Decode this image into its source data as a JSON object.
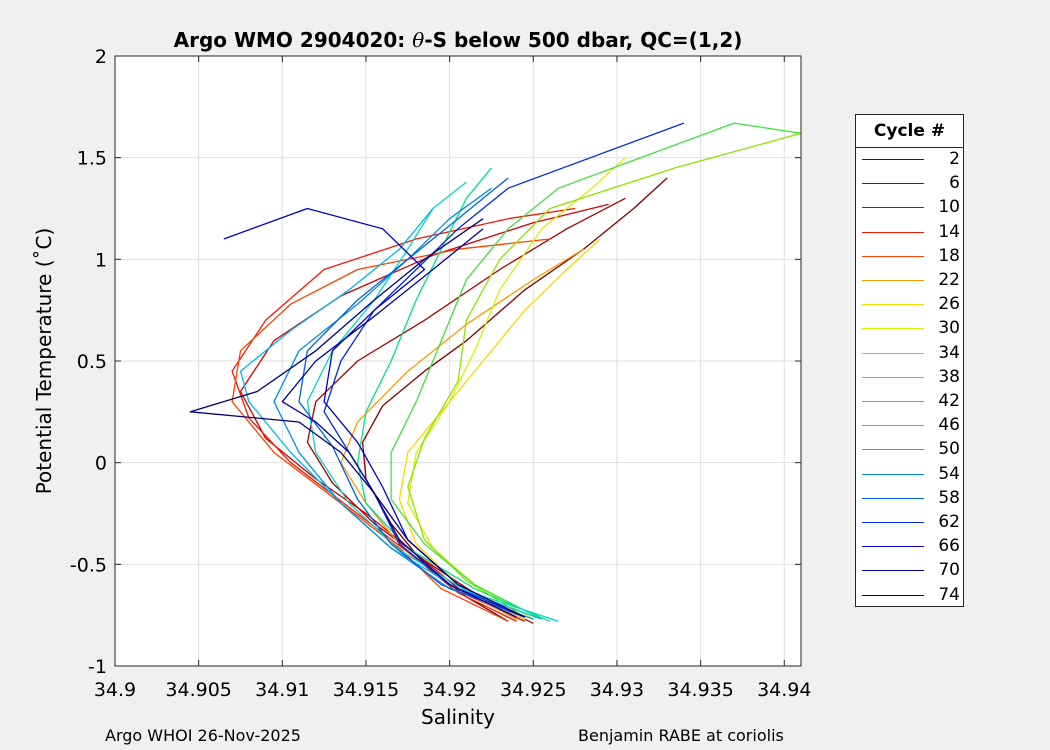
{
  "chart_data": {
    "type": "line",
    "title_prefix": "Argo WMO 2904020: ",
    "title_symbol": "θ",
    "title_suffix": "-S below 500 dbar,  QC=(1,2)",
    "xlabel": "Salinity",
    "ylabel": "Potential Temperature (˚C)",
    "xlim": [
      34.9,
      34.941
    ],
    "ylim": [
      -1,
      2
    ],
    "xticks": [
      34.9,
      34.905,
      34.91,
      34.915,
      34.92,
      34.925,
      34.93,
      34.935,
      34.94
    ],
    "xtick_labels": [
      "34.9",
      "34.905",
      "34.91",
      "34.915",
      "34.92",
      "34.925",
      "34.93",
      "34.935",
      "34.94"
    ],
    "yticks": [
      -1,
      -0.5,
      0,
      0.5,
      1,
      1.5,
      2
    ],
    "ytick_labels": [
      "-1",
      "-0.5",
      "0",
      "0.5",
      "1",
      "1.5",
      "2"
    ],
    "grid": true,
    "legend_title": "Cycle #",
    "legend_position": "outside-right",
    "series": [
      {
        "name": "2",
        "color": "#800000",
        "points": [
          [
            34.9235,
            -0.78
          ],
          [
            34.921,
            -0.66
          ],
          [
            34.9185,
            -0.5
          ],
          [
            34.9165,
            -0.3
          ],
          [
            34.915,
            -0.08
          ],
          [
            34.9148,
            0.1
          ],
          [
            34.916,
            0.28
          ],
          [
            34.9185,
            0.45
          ],
          [
            34.921,
            0.6
          ],
          [
            34.9245,
            0.85
          ],
          [
            34.928,
            1.05
          ],
          [
            34.931,
            1.25
          ],
          [
            34.933,
            1.4
          ]
        ]
      },
      {
        "name": "6",
        "color": "#a80000",
        "points": [
          [
            34.925,
            -0.79
          ],
          [
            34.922,
            -0.67
          ],
          [
            34.9185,
            -0.48
          ],
          [
            34.9155,
            -0.3
          ],
          [
            34.913,
            -0.1
          ],
          [
            34.9115,
            0.1
          ],
          [
            34.912,
            0.3
          ],
          [
            34.9145,
            0.5
          ],
          [
            34.9185,
            0.7
          ],
          [
            34.923,
            0.95
          ],
          [
            34.927,
            1.15
          ],
          [
            34.9305,
            1.3
          ]
        ]
      },
      {
        "name": "10",
        "color": "#d00000",
        "points": [
          [
            34.9245,
            -0.78
          ],
          [
            34.921,
            -0.65
          ],
          [
            34.918,
            -0.45
          ],
          [
            34.915,
            -0.25
          ],
          [
            34.912,
            -0.08
          ],
          [
            34.909,
            0.12
          ],
          [
            34.9075,
            0.35
          ],
          [
            34.9095,
            0.6
          ],
          [
            34.9135,
            0.82
          ],
          [
            34.919,
            1.02
          ],
          [
            34.925,
            1.18
          ],
          [
            34.9295,
            1.27
          ]
        ]
      },
      {
        "name": "14",
        "color": "#f51800",
        "points": [
          [
            34.924,
            -0.78
          ],
          [
            34.9205,
            -0.64
          ],
          [
            34.9175,
            -0.44
          ],
          [
            34.914,
            -0.22
          ],
          [
            34.9105,
            0.0
          ],
          [
            34.908,
            0.22
          ],
          [
            34.907,
            0.45
          ],
          [
            34.909,
            0.7
          ],
          [
            34.9125,
            0.95
          ],
          [
            34.918,
            1.1
          ],
          [
            34.9235,
            1.2
          ],
          [
            34.9275,
            1.25
          ]
        ]
      },
      {
        "name": "18",
        "color": "#ff4000",
        "points": [
          [
            34.9235,
            -0.78
          ],
          [
            34.9195,
            -0.62
          ],
          [
            34.917,
            -0.42
          ],
          [
            34.9135,
            -0.2
          ],
          [
            34.9095,
            0.05
          ],
          [
            34.907,
            0.3
          ],
          [
            34.9075,
            0.55
          ],
          [
            34.9105,
            0.78
          ],
          [
            34.9145,
            0.95
          ],
          [
            34.9205,
            1.05
          ],
          [
            34.926,
            1.1
          ]
        ]
      },
      {
        "name": "22",
        "color": "#ff9900",
        "points": [
          [
            34.924,
            -0.77
          ],
          [
            34.92,
            -0.6
          ],
          [
            34.917,
            -0.4
          ],
          [
            34.915,
            -0.2
          ],
          [
            34.9135,
            0.0
          ],
          [
            34.9145,
            0.2
          ],
          [
            34.9175,
            0.45
          ],
          [
            34.921,
            0.68
          ],
          [
            34.925,
            0.9
          ],
          [
            34.928,
            1.05
          ]
        ]
      },
      {
        "name": "26",
        "color": "#ffd400",
        "points": [
          [
            34.9245,
            -0.77
          ],
          [
            34.9205,
            -0.6
          ],
          [
            34.918,
            -0.4
          ],
          [
            34.917,
            -0.18
          ],
          [
            34.9175,
            0.05
          ],
          [
            34.9195,
            0.25
          ],
          [
            34.922,
            0.5
          ],
          [
            34.9245,
            0.75
          ],
          [
            34.927,
            0.95
          ],
          [
            34.929,
            1.1
          ]
        ]
      },
      {
        "name": "30",
        "color": "#d8f000",
        "points": [
          [
            34.925,
            -0.77
          ],
          [
            34.9215,
            -0.6
          ],
          [
            34.919,
            -0.42
          ],
          [
            34.9175,
            -0.2
          ],
          [
            34.918,
            0.05
          ],
          [
            34.92,
            0.3
          ],
          [
            34.9215,
            0.55
          ],
          [
            34.923,
            0.85
          ],
          [
            34.9255,
            1.15
          ],
          [
            34.9285,
            1.35
          ],
          [
            34.9305,
            1.5
          ]
        ]
      },
      {
        "name": "34",
        "color": "#90e000",
        "points": [
          [
            34.9245,
            -0.76
          ],
          [
            34.921,
            -0.58
          ],
          [
            34.9185,
            -0.38
          ],
          [
            34.9175,
            -0.12
          ],
          [
            34.9185,
            0.12
          ],
          [
            34.9205,
            0.4
          ],
          [
            34.921,
            0.7
          ],
          [
            34.923,
            1.0
          ],
          [
            34.926,
            1.25
          ],
          [
            34.9335,
            1.45
          ],
          [
            34.941,
            1.62
          ]
        ]
      },
      {
        "name": "38",
        "color": "#40e040",
        "points": [
          [
            34.9255,
            -0.77
          ],
          [
            34.9215,
            -0.6
          ],
          [
            34.9185,
            -0.4
          ],
          [
            34.9165,
            -0.18
          ],
          [
            34.9165,
            0.05
          ],
          [
            34.918,
            0.3
          ],
          [
            34.9195,
            0.6
          ],
          [
            34.921,
            0.9
          ],
          [
            34.9235,
            1.15
          ],
          [
            34.9265,
            1.35
          ],
          [
            34.937,
            1.67
          ],
          [
            34.941,
            1.62
          ]
        ]
      },
      {
        "name": "42",
        "color": "#00e08a",
        "points": [
          [
            34.926,
            -0.78
          ],
          [
            34.9215,
            -0.62
          ],
          [
            34.9175,
            -0.42
          ],
          [
            34.915,
            -0.2
          ],
          [
            34.9145,
            0.0
          ],
          [
            34.915,
            0.25
          ],
          [
            34.9165,
            0.5
          ],
          [
            34.918,
            0.8
          ],
          [
            34.9195,
            1.05
          ],
          [
            34.921,
            1.3
          ],
          [
            34.9225,
            1.45
          ]
        ]
      },
      {
        "name": "46",
        "color": "#00d8c8",
        "points": [
          [
            34.9265,
            -0.78
          ],
          [
            34.921,
            -0.63
          ],
          [
            34.917,
            -0.43
          ],
          [
            34.914,
            -0.2
          ],
          [
            34.912,
            0.05
          ],
          [
            34.9115,
            0.3
          ],
          [
            34.913,
            0.55
          ],
          [
            34.9155,
            0.8
          ],
          [
            34.9175,
            1.05
          ],
          [
            34.919,
            1.25
          ],
          [
            34.921,
            1.38
          ]
        ]
      },
      {
        "name": "50",
        "color": "#00b8f0",
        "points": [
          [
            34.9255,
            -0.77
          ],
          [
            34.9205,
            -0.62
          ],
          [
            34.9165,
            -0.42
          ],
          [
            34.9135,
            -0.2
          ],
          [
            34.9105,
            0.05
          ],
          [
            34.908,
            0.3
          ],
          [
            34.9075,
            0.45
          ],
          [
            34.9105,
            0.65
          ],
          [
            34.914,
            0.85
          ],
          [
            34.917,
            1.05
          ],
          [
            34.919,
            1.25
          ]
        ]
      },
      {
        "name": "54",
        "color": "#0090e0",
        "points": [
          [
            34.925,
            -0.77
          ],
          [
            34.92,
            -0.62
          ],
          [
            34.9165,
            -0.42
          ],
          [
            34.9135,
            -0.2
          ],
          [
            34.911,
            0.05
          ],
          [
            34.9095,
            0.3
          ],
          [
            34.911,
            0.55
          ],
          [
            34.9145,
            0.78
          ],
          [
            34.9175,
            1.0
          ],
          [
            34.92,
            1.2
          ],
          [
            34.9225,
            1.35
          ]
        ]
      },
      {
        "name": "58",
        "color": "#0060e8",
        "points": [
          [
            34.9245,
            -0.76
          ],
          [
            34.9195,
            -0.6
          ],
          [
            34.9165,
            -0.4
          ],
          [
            34.9145,
            -0.18
          ],
          [
            34.913,
            0.08
          ],
          [
            34.911,
            0.3
          ],
          [
            34.9115,
            0.55
          ],
          [
            34.9145,
            0.8
          ],
          [
            34.9175,
            1.0
          ],
          [
            34.9205,
            1.2
          ],
          [
            34.9235,
            1.4
          ]
        ]
      },
      {
        "name": "62",
        "color": "#0028e0",
        "points": [
          [
            34.9245,
            -0.76
          ],
          [
            34.92,
            -0.6
          ],
          [
            34.917,
            -0.4
          ],
          [
            34.9155,
            -0.15
          ],
          [
            34.914,
            0.05
          ],
          [
            34.9125,
            0.25
          ],
          [
            34.9135,
            0.5
          ],
          [
            34.9155,
            0.75
          ],
          [
            34.918,
            0.95
          ],
          [
            34.9205,
            1.15
          ],
          [
            34.9235,
            1.35
          ],
          [
            34.934,
            1.67
          ]
        ]
      },
      {
        "name": "66",
        "color": "#0000c8",
        "points": [
          [
            34.9245,
            -0.76
          ],
          [
            34.9205,
            -0.6
          ],
          [
            34.9175,
            -0.38
          ],
          [
            34.916,
            -0.12
          ],
          [
            34.9145,
            0.1
          ],
          [
            34.9125,
            0.3
          ],
          [
            34.913,
            0.55
          ],
          [
            34.9155,
            0.75
          ],
          [
            34.9185,
            0.95
          ],
          [
            34.916,
            1.15
          ],
          [
            34.9115,
            1.25
          ],
          [
            34.9065,
            1.1
          ]
        ]
      },
      {
        "name": "70",
        "color": "#0000a0",
        "points": [
          [
            34.924,
            -0.76
          ],
          [
            34.92,
            -0.6
          ],
          [
            34.917,
            -0.38
          ],
          [
            34.9155,
            -0.15
          ],
          [
            34.914,
            0.05
          ],
          [
            34.912,
            0.2
          ],
          [
            34.91,
            0.3
          ],
          [
            34.912,
            0.5
          ],
          [
            34.9155,
            0.72
          ],
          [
            34.919,
            0.95
          ],
          [
            34.922,
            1.15
          ]
        ]
      },
      {
        "name": "74",
        "color": "#00007c",
        "points": [
          [
            34.9245,
            -0.76
          ],
          [
            34.9205,
            -0.6
          ],
          [
            34.9175,
            -0.38
          ],
          [
            34.9155,
            -0.15
          ],
          [
            34.9135,
            0.05
          ],
          [
            34.911,
            0.2
          ],
          [
            34.9045,
            0.25
          ],
          [
            34.9085,
            0.35
          ],
          [
            34.912,
            0.55
          ],
          [
            34.9155,
            0.8
          ],
          [
            34.9185,
            1.0
          ],
          [
            34.922,
            1.2
          ]
        ]
      }
    ]
  },
  "footer": {
    "left": "Argo WHOI 26-Nov-2025",
    "right": "Benjamin RABE at coriolis"
  }
}
